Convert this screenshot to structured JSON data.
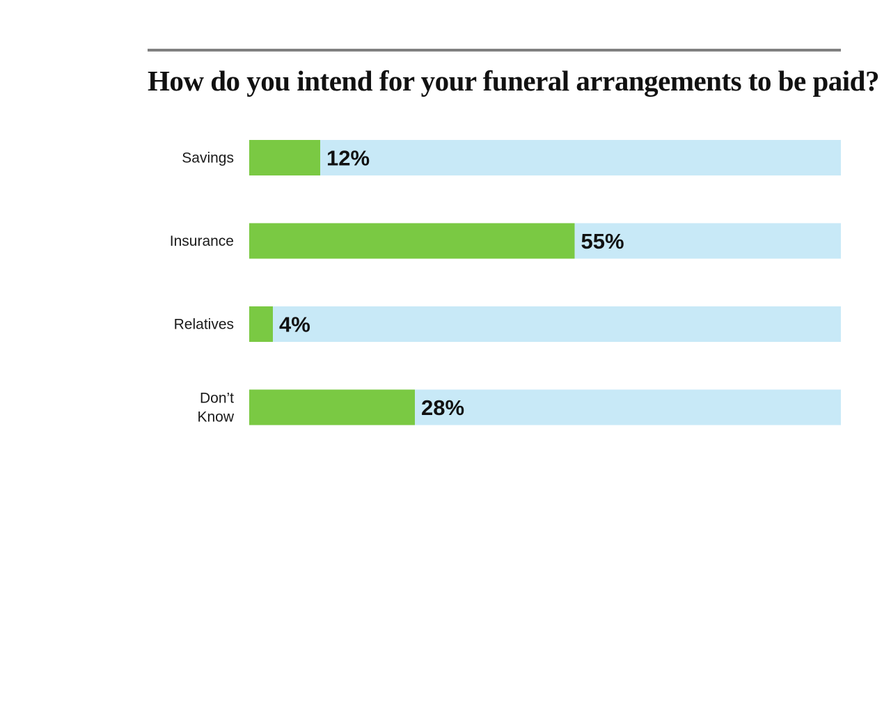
{
  "chart_data": {
    "type": "bar",
    "orientation": "horizontal",
    "title": "How do you intend for your funeral arrangements to be paid?",
    "categories": [
      [
        "Savings"
      ],
      [
        "Insurance"
      ],
      [
        "Relatives"
      ],
      [
        "Don’t",
        "Know"
      ]
    ],
    "values": [
      12,
      55,
      4,
      28
    ],
    "value_labels": [
      "12%",
      "55%",
      "4%",
      "28%"
    ],
    "xlim": [
      0,
      100
    ],
    "xlabel": "",
    "ylabel": "",
    "grid": false,
    "colors": {
      "bar": "#7ac943",
      "track": "#c8e9f7",
      "rule": "#808080"
    }
  }
}
